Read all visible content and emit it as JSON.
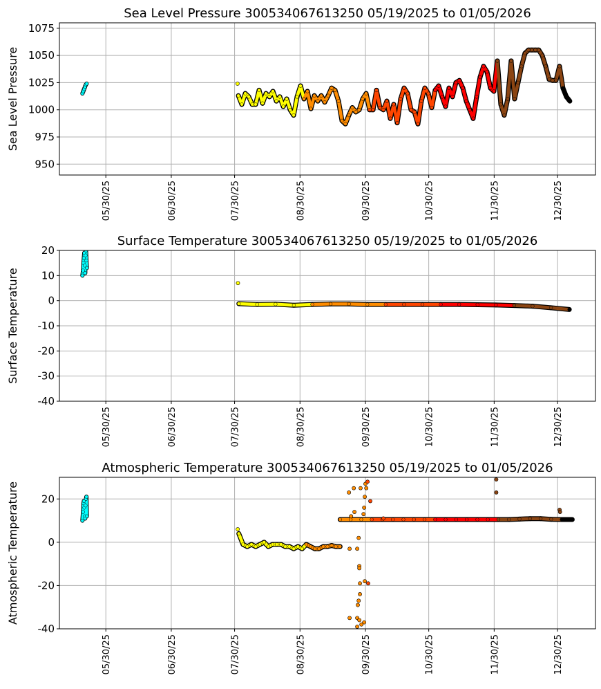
{
  "chart_data": {
    "x_unit": "days since 05/19/2025",
    "x_ticks": [
      11,
      42,
      72,
      103,
      134,
      164,
      195,
      225
    ],
    "x_tick_labels": [
      "05/30/25",
      "06/30/25",
      "07/30/25",
      "08/30/25",
      "09/30/25",
      "10/30/25",
      "11/30/25",
      "12/30/25"
    ],
    "xlim": [
      -11,
      243
    ],
    "month_colors": [
      {
        "from_day": -100,
        "color": "#00ffff"
      },
      {
        "from_day": 73,
        "color": "#ffff00"
      },
      {
        "from_day": 104.5,
        "color": "#ff8c00"
      },
      {
        "from_day": 135,
        "color": "#ff4500"
      },
      {
        "from_day": 165.5,
        "color": "#ff0000"
      },
      {
        "from_day": 196,
        "color": "#8b4513"
      },
      {
        "from_day": 227,
        "color": "#000000"
      }
    ],
    "plots": [
      {
        "type": "scatter",
        "title": "Sea Level Pressure 300534067613250  05/19/2025 to 01/05/2026",
        "ylabel": "Sea Level Pressure",
        "ylim": [
          940,
          1080
        ],
        "y_ticks": [
          950,
          975,
          1000,
          1025,
          1050,
          1075
        ],
        "grid": true,
        "cyan_points": [
          [
            -0.1,
            1015
          ],
          [
            0.3,
            1017
          ],
          [
            0.7,
            1019
          ],
          [
            1.1,
            1021
          ],
          [
            1.5,
            1023
          ],
          [
            1.9,
            1024
          ]
        ],
        "series": {
          "start_day": 73.8,
          "step_days": 1.636,
          "values": [
            1013,
            1005,
            1015,
            1012,
            1005,
            1005,
            1018,
            1006,
            1015,
            1012,
            1017,
            1008,
            1012,
            1003,
            1010,
            1000,
            995,
            1012,
            1022,
            1010,
            1017,
            1001,
            1013,
            1008,
            1013,
            1007,
            1013,
            1020,
            1018,
            1008,
            990,
            987,
            995,
            1002,
            998,
            1000,
            1010,
            1015,
            1000,
            1000,
            1018,
            1002,
            1000,
            1008,
            992,
            1005,
            988,
            1010,
            1020,
            1015,
            1000,
            998,
            987,
            1008,
            1020,
            1015,
            1002,
            1018,
            1022,
            1012,
            1003,
            1020,
            1012,
            1025,
            1027,
            1020,
            1008,
            1000,
            992,
            1012,
            1030,
            1040,
            1035,
            1020,
            1017,
            1045,
            1005,
            995,
            1010,
            1045,
            1010,
            1025,
            1040,
            1052,
            1055,
            1055,
            1055,
            1055,
            1050,
            1040,
            1028,
            1027,
            1027,
            1040,
            1020,
            1012,
            1008
          ]
        },
        "outliers": [
          [
            73.4,
            1024
          ]
        ]
      },
      {
        "type": "scatter",
        "title": "Surface Temperature 300534067613250  05/19/2025 to 01/05/2026",
        "ylabel": "Surface Temperature",
        "ylim": [
          -40,
          20
        ],
        "y_ticks": [
          -40,
          -30,
          -20,
          -10,
          0,
          10,
          20
        ],
        "grid": true,
        "cyan_points": [
          [
            -0.1,
            10
          ],
          [
            0.2,
            12
          ],
          [
            0.4,
            15
          ],
          [
            0.6,
            17
          ],
          [
            0.8,
            19
          ],
          [
            1.0,
            14
          ],
          [
            1.2,
            11
          ],
          [
            1.4,
            18
          ],
          [
            1.6,
            20
          ],
          [
            1.8,
            16
          ],
          [
            2.0,
            13
          ]
        ],
        "series": {
          "start_day": 74,
          "step_days": 8.7,
          "values": [
            -1.2,
            -1.5,
            -1.4,
            -1.8,
            -1.5,
            -1.3,
            -1.3,
            -1.5,
            -1.5,
            -1.5,
            -1.5,
            -1.5,
            -1.5,
            -1.6,
            -1.7,
            -1.9,
            -2.2,
            -2.8,
            -3.5
          ]
        },
        "outliers": [
          [
            73.6,
            7
          ]
        ]
      },
      {
        "type": "scatter",
        "title": "Atmospheric Temperature 300534067613250  05/19/2025 to 01/05/2026",
        "ylabel": "Atmospheric Temperature",
        "ylim": [
          -40,
          30
        ],
        "y_ticks": [
          -40,
          -20,
          0,
          20
        ],
        "grid": true,
        "cyan_points": [
          [
            -0.1,
            10
          ],
          [
            0.2,
            14
          ],
          [
            0.4,
            18
          ],
          [
            0.6,
            19
          ],
          [
            0.8,
            16
          ],
          [
            1.0,
            12
          ],
          [
            1.2,
            11
          ],
          [
            1.4,
            17
          ],
          [
            1.6,
            20
          ],
          [
            1.8,
            21
          ],
          [
            2.0,
            12
          ]
        ],
        "series": {
          "start_day": 74,
          "step_days": 2,
          "values": [
            4,
            -1,
            -2,
            -1,
            -2,
            -1,
            0,
            -2,
            -1,
            -1,
            -1,
            -2,
            -2,
            -3,
            -2,
            -3,
            -1,
            -2,
            -3,
            -3,
            -2,
            -2,
            -1.5,
            -2,
            -2
          ]
        },
        "series2": {
          "start_day": 122,
          "step_days": 5,
          "values": [
            10.5,
            10.5,
            10.5,
            10.5,
            10.5,
            10.5,
            10.5,
            10.5,
            10.5,
            10.5,
            10.5,
            10.5,
            10.5,
            10.5,
            10.5,
            10.5,
            10.5,
            10.7,
            10.9,
            10.9,
            10.6,
            10.5,
            10.5
          ]
        },
        "outliers": [
          [
            73.5,
            6
          ],
          [
            126.2,
            23
          ],
          [
            128.5,
            25
          ],
          [
            128.8,
            14
          ],
          [
            127.2,
            12
          ],
          [
            130.1,
            -3
          ],
          [
            131.1,
            -11
          ],
          [
            131.1,
            -12
          ],
          [
            131.4,
            -19
          ],
          [
            131.4,
            -24
          ],
          [
            130.8,
            -27
          ],
          [
            130.4,
            -29
          ],
          [
            126.5,
            -35
          ],
          [
            130.1,
            -35
          ],
          [
            131.1,
            -36
          ],
          [
            132.1,
            -38
          ],
          [
            130.1,
            -39
          ],
          [
            133.4,
            -37
          ],
          [
            133.7,
            -18
          ],
          [
            135.3,
            -19
          ],
          [
            136.3,
            19
          ],
          [
            134.0,
            27
          ],
          [
            134.4,
            25
          ],
          [
            133.7,
            21
          ],
          [
            133.4,
            16
          ],
          [
            133.1,
            13
          ],
          [
            131.7,
            25
          ],
          [
            130.8,
            2
          ],
          [
            126.5,
            -3
          ],
          [
            135.0,
            28
          ],
          [
            142.5,
            11
          ],
          [
            196.0,
            29
          ],
          [
            196.0,
            23
          ],
          [
            226.0,
            15
          ],
          [
            226.2,
            14
          ]
        ]
      }
    ]
  }
}
